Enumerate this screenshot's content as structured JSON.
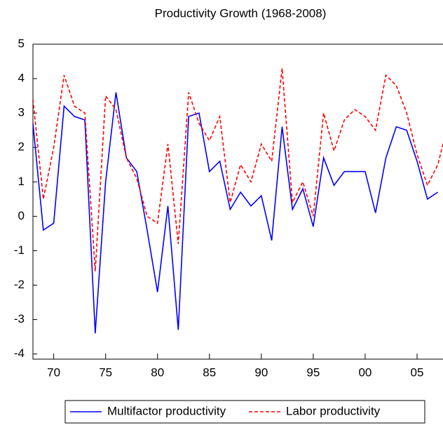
{
  "chart_data": {
    "type": "line",
    "title": "Productivity Growth (1968-2008)",
    "x": [
      1968,
      1969,
      1970,
      1971,
      1972,
      1973,
      1974,
      1975,
      1976,
      1977,
      1978,
      1979,
      1980,
      1981,
      1982,
      1983,
      1984,
      1985,
      1986,
      1987,
      1988,
      1989,
      1990,
      1991,
      1992,
      1993,
      1994,
      1995,
      1996,
      1997,
      1998,
      1999,
      2000,
      2001,
      2002,
      2003,
      2004,
      2005,
      2006,
      2007,
      2008
    ],
    "series": [
      {
        "name": "Multifactor productivity",
        "color": "#0000ff",
        "dash": "solid",
        "values": [
          2.7,
          -0.4,
          -0.2,
          3.2,
          2.9,
          2.8,
          -3.4,
          1.0,
          3.6,
          1.7,
          1.3,
          -0.4,
          -2.2,
          0.3,
          -3.3,
          2.9,
          3.0,
          1.3,
          1.6,
          0.2,
          0.7,
          0.3,
          0.6,
          -0.7,
          2.6,
          0.2,
          0.8,
          -0.3,
          1.7,
          0.9,
          1.3,
          1.3,
          1.3,
          0.1,
          1.7,
          2.6,
          2.5,
          1.6,
          0.5,
          0.7,
          null
        ]
      },
      {
        "name": "Labor productivity",
        "color": "#ff0000",
        "dash": "dashed",
        "values": [
          3.4,
          0.5,
          2.0,
          4.1,
          3.2,
          3.0,
          -1.6,
          3.5,
          3.1,
          1.7,
          1.1,
          0.0,
          -0.2,
          2.1,
          -0.8,
          3.6,
          2.7,
          2.2,
          2.9,
          0.4,
          1.5,
          1.0,
          2.1,
          1.6,
          4.3,
          0.4,
          1.0,
          0.0,
          3.0,
          1.9,
          2.8,
          3.1,
          2.9,
          2.5,
          4.1,
          3.8,
          3.0,
          1.8,
          0.9,
          1.5,
          2.7
        ]
      }
    ],
    "xlim": [
      1968,
      2007.5
    ],
    "xticks": [
      {
        "value": 1970,
        "label": "70"
      },
      {
        "value": 1975,
        "label": "75"
      },
      {
        "value": 1980,
        "label": "80"
      },
      {
        "value": 1985,
        "label": "85"
      },
      {
        "value": 1990,
        "label": "90"
      },
      {
        "value": 1995,
        "label": "95"
      },
      {
        "value": 2000,
        "label": "00"
      },
      {
        "value": 2005,
        "label": "05"
      }
    ],
    "ylim": [
      -4.15,
      5
    ],
    "yticks": [
      -4,
      -3,
      -2,
      -1,
      0,
      1,
      2,
      3,
      4,
      5
    ],
    "legend": "bottom"
  }
}
